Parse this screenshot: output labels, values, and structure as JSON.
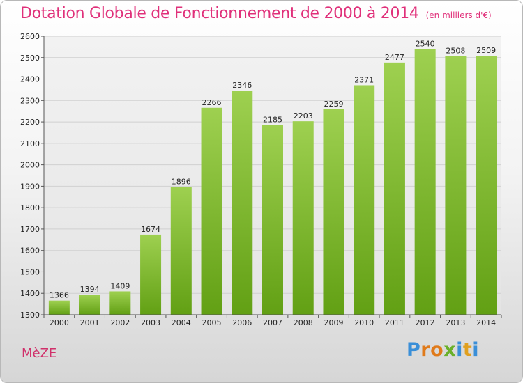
{
  "title": {
    "main": "Dotation Globale de Fonctionnement de 2000 à 2014",
    "unit": "(en milliers d'€)"
  },
  "commune": "MèZE",
  "logo": {
    "text": "Proxiti",
    "letters": [
      {
        "char": "P",
        "color": "#3a8fd8"
      },
      {
        "char": "r",
        "color": "#e07a1a"
      },
      {
        "char": "o",
        "color": "#e07a1a"
      },
      {
        "char": "x",
        "color": "#6ab02a"
      },
      {
        "char": "i",
        "color": "#3a8fd8"
      },
      {
        "char": "t",
        "color": "#e0a020"
      },
      {
        "char": "i",
        "color": "#3a8fd8"
      }
    ]
  },
  "colors": {
    "title": "#e0307a",
    "bar_top": "#9ed050",
    "bar_bottom": "#62a014",
    "grid": "#d0d0d0"
  },
  "chart_data": {
    "type": "bar",
    "title": "Dotation Globale de Fonctionnement de 2000 à 2014",
    "subtitle": "(en milliers d'€)",
    "xlabel": "",
    "ylabel": "",
    "categories": [
      "2000",
      "2001",
      "2002",
      "2003",
      "2004",
      "2005",
      "2006",
      "2007",
      "2008",
      "2009",
      "2010",
      "2011",
      "2012",
      "2013",
      "2014"
    ],
    "values": [
      1366,
      1394,
      1409,
      1674,
      1896,
      2266,
      2346,
      2185,
      2203,
      2259,
      2371,
      2477,
      2540,
      2508,
      2509
    ],
    "ylim": [
      1300,
      2600
    ],
    "yticks": [
      1300,
      1400,
      1500,
      1600,
      1700,
      1800,
      1900,
      2000,
      2100,
      2200,
      2300,
      2400,
      2500,
      2600
    ],
    "grid": true,
    "legend": "none"
  }
}
